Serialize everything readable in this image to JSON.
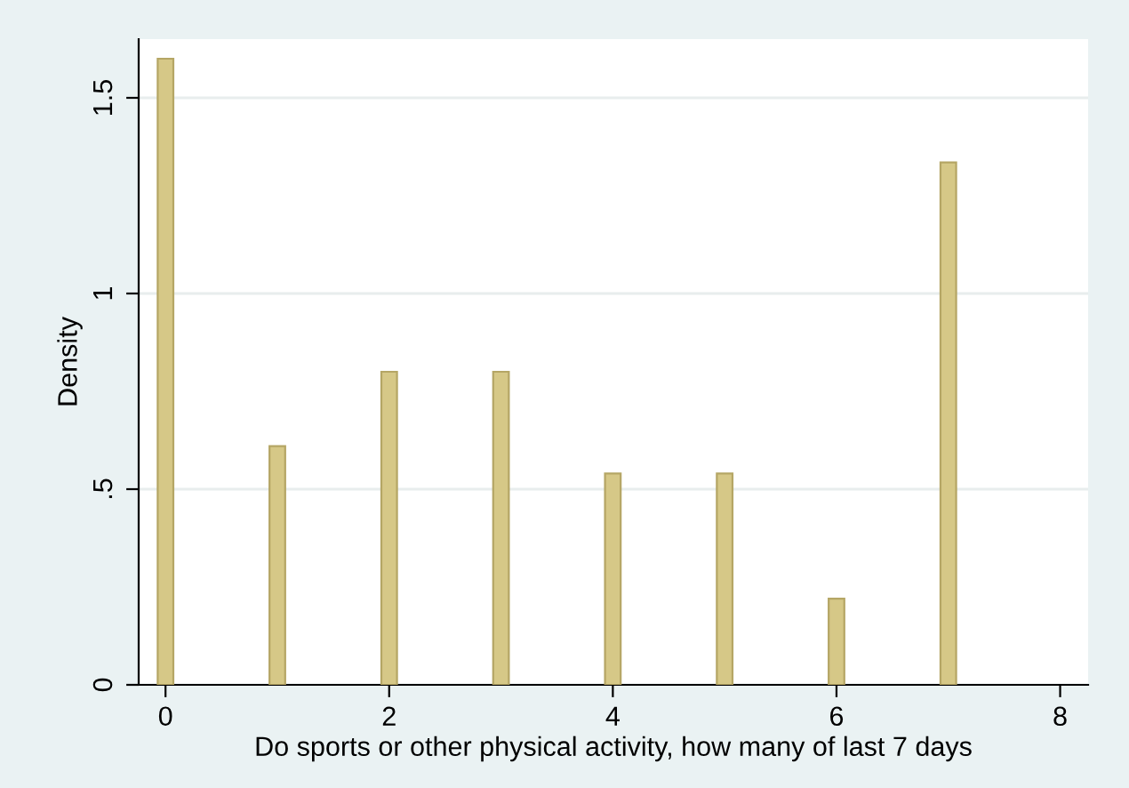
{
  "chart_data": {
    "type": "bar",
    "xlabel": "Do sports or other physical activity, how many of last 7 days",
    "ylabel": "Density",
    "x": [
      0,
      1,
      2,
      3,
      4,
      5,
      6,
      7
    ],
    "values": [
      1.6,
      0.61,
      0.8,
      0.8,
      0.54,
      0.54,
      0.22,
      1.335
    ],
    "color": "#d6c887",
    "xlim": [
      -0.24,
      8.25
    ],
    "xticks": [
      0,
      2,
      4,
      6,
      8
    ],
    "ylim": [
      0,
      1.65
    ],
    "yticks": [
      0,
      {
        "value": 0.5,
        "label": ".5"
      },
      1,
      1.5
    ],
    "grid": "y",
    "legend": false
  }
}
